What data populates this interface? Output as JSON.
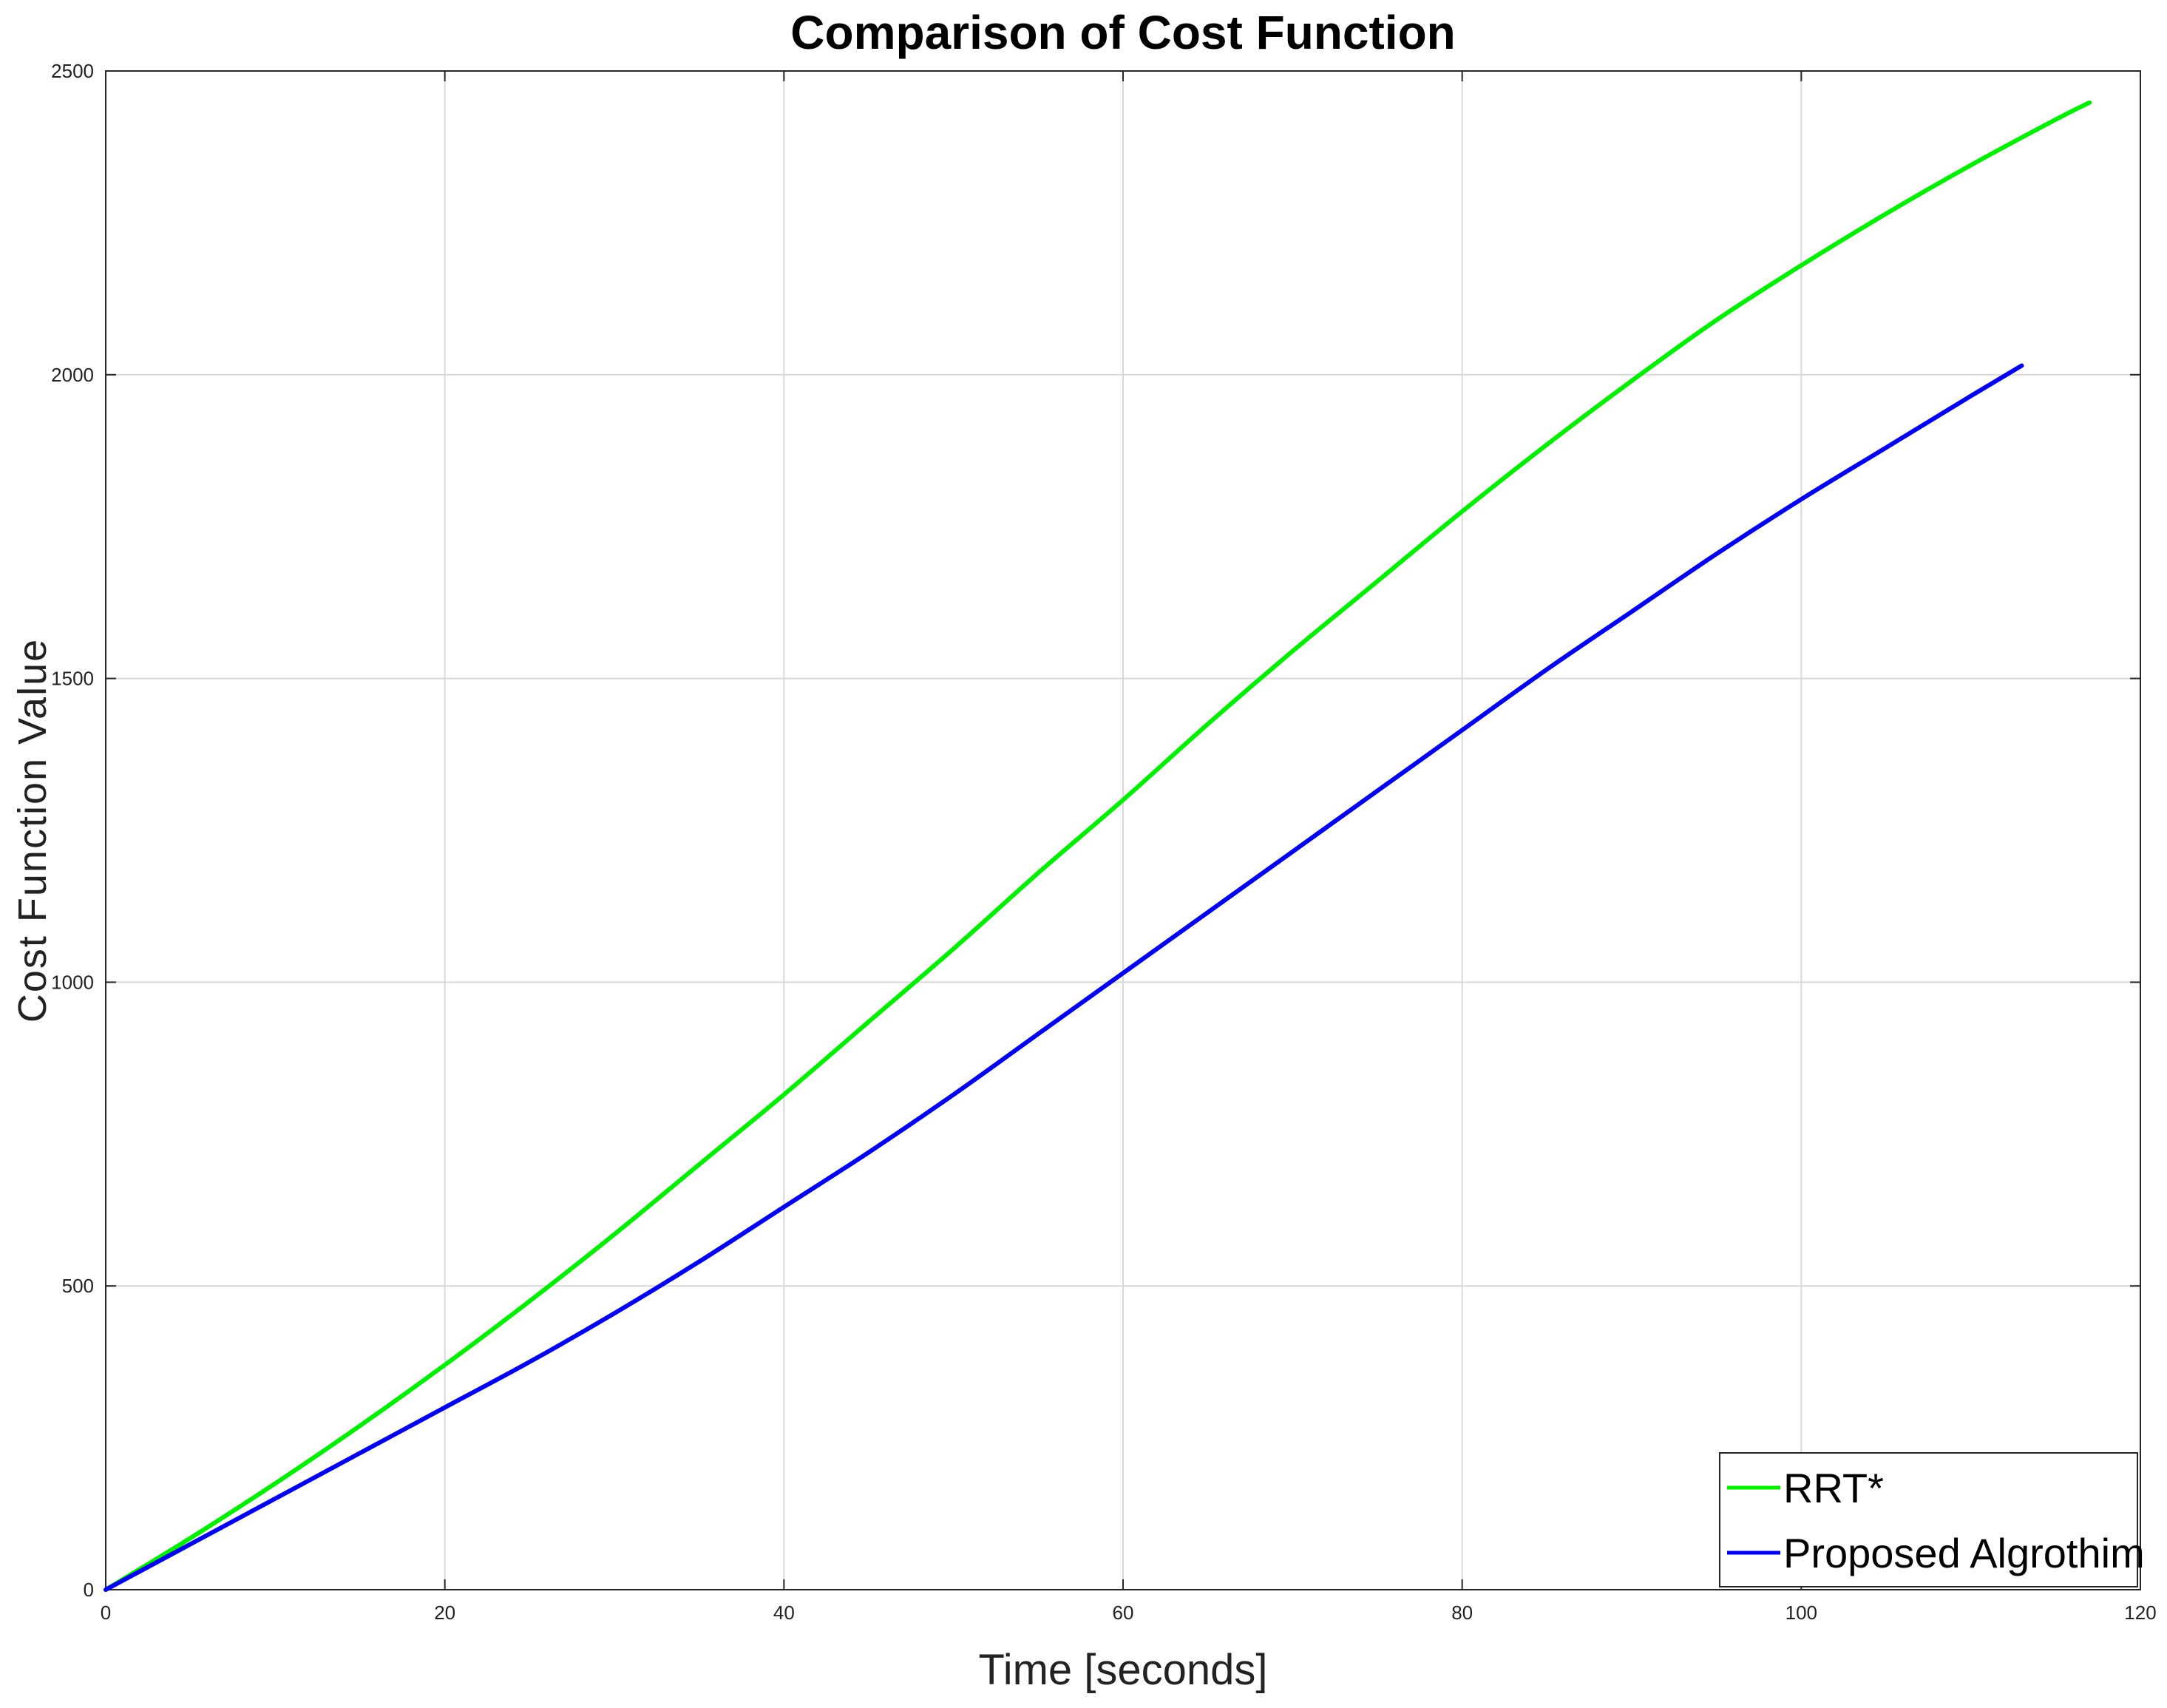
{
  "chart_data": {
    "type": "line",
    "title": "Comparison of Cost Function",
    "xlabel": "Time [seconds]",
    "ylabel": "Cost Function Value",
    "xlim": [
      0,
      120
    ],
    "ylim": [
      0,
      2500
    ],
    "xticks": [
      0,
      20,
      40,
      60,
      80,
      100,
      120
    ],
    "yticks": [
      0,
      500,
      1000,
      1500,
      2000,
      2500
    ],
    "grid": true,
    "legend_position": "bottom-right",
    "series": [
      {
        "name": "RRT*",
        "color": "#00ee00",
        "x": [
          0,
          5,
          10,
          15,
          20,
          25,
          30,
          35,
          40,
          45,
          50,
          55,
          60,
          65,
          70,
          75,
          80,
          85,
          90,
          95,
          100,
          105,
          110,
          115,
          117
        ],
        "y": [
          0,
          85,
          175,
          270,
          370,
          475,
          585,
          700,
          815,
          935,
          1055,
          1180,
          1300,
          1425,
          1545,
          1660,
          1775,
          1885,
          1990,
          2090,
          2180,
          2265,
          2345,
          2420,
          2448
        ]
      },
      {
        "name": "Proposed Algrothim",
        "color": "#0000ee",
        "x": [
          0,
          5,
          10,
          15,
          20,
          25,
          30,
          35,
          40,
          45,
          50,
          55,
          60,
          65,
          70,
          75,
          80,
          85,
          90,
          95,
          100,
          105,
          110,
          113
        ],
        "y": [
          0,
          75,
          150,
          225,
          300,
          375,
          455,
          540,
          630,
          720,
          815,
          915,
          1015,
          1115,
          1215,
          1315,
          1415,
          1515,
          1610,
          1705,
          1795,
          1880,
          1965,
          2015
        ]
      }
    ]
  }
}
